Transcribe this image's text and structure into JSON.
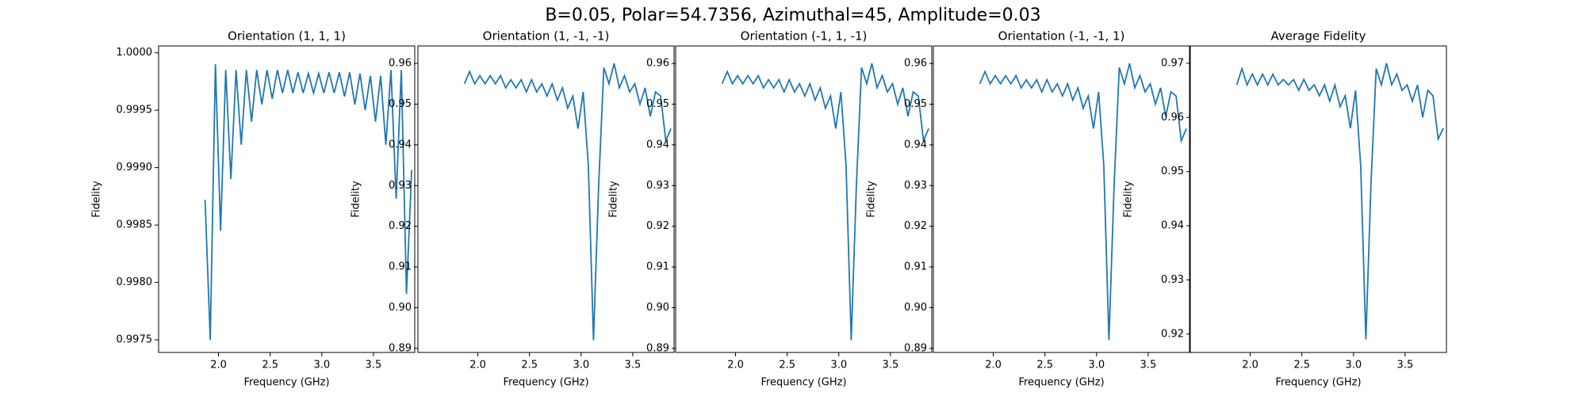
{
  "title": "B=0.05, Polar=54.7356, Azimuthal=45, Amplitude=0.03",
  "chart_data": [
    {
      "type": "line",
      "title": "Orientation (1, 1, 1)",
      "x_label": "Frequency (GHz)",
      "y_label": "Fidelity",
      "color": "#1f77b4",
      "xlim": [
        1.42,
        3.9
      ],
      "ylim": [
        0.99739,
        1.00006
      ],
      "xticks": [
        {
          "value": 2.0,
          "label": "2.0"
        },
        2.5,
        {
          "value": 3.0,
          "label": "3.0"
        },
        3.5
      ],
      "yticks": [
        0.9975,
        {
          "value": 0.998,
          "label": "0.9980"
        },
        0.9985,
        {
          "value": 0.999,
          "label": "0.9990"
        },
        0.9995,
        {
          "value": 1.0,
          "label": "1.0000"
        }
      ],
      "x": [
        1.87,
        1.92,
        1.97,
        2.02,
        2.07,
        2.12,
        2.17,
        2.22,
        2.27,
        2.32,
        2.37,
        2.42,
        2.47,
        2.52,
        2.57,
        2.62,
        2.67,
        2.72,
        2.77,
        2.82,
        2.87,
        2.92,
        2.97,
        3.02,
        3.07,
        3.12,
        3.17,
        3.22,
        3.27,
        3.32,
        3.37,
        3.42,
        3.47,
        3.52,
        3.57,
        3.62,
        3.67,
        3.72,
        3.77,
        3.82,
        3.87
      ],
      "values": [
        0.99872,
        0.9975,
        0.9999,
        0.99845,
        0.99985,
        0.9989,
        0.99985,
        0.9992,
        0.99985,
        0.9994,
        0.99985,
        0.99955,
        0.99985,
        0.9996,
        0.99985,
        0.99965,
        0.99985,
        0.99965,
        0.99983,
        0.99965,
        0.99982,
        0.99965,
        0.99982,
        0.99965,
        0.99983,
        0.99965,
        0.99983,
        0.99962,
        0.99983,
        0.99955,
        0.99982,
        0.9995,
        0.9998,
        0.9994,
        0.9998,
        0.9992,
        0.99985,
        0.99873,
        0.99985,
        0.9979,
        0.99898
      ]
    },
    {
      "type": "line",
      "title": "Orientation (1, -1, -1)",
      "x_label": "Frequency (GHz)",
      "y_label": "Fidelity",
      "color": "#1f77b4",
      "xlim": [
        1.42,
        3.9
      ],
      "ylim": [
        0.889,
        0.9643
      ],
      "xticks": [
        {
          "value": 2.0,
          "label": "2.0"
        },
        2.5,
        {
          "value": 3.0,
          "label": "3.0"
        },
        3.5
      ],
      "yticks": [
        0.89,
        {
          "value": 0.9,
          "label": "0.90"
        },
        0.91,
        0.92,
        0.93,
        0.94,
        0.95,
        0.96
      ],
      "x": [
        1.87,
        1.92,
        1.97,
        2.02,
        2.07,
        2.12,
        2.17,
        2.22,
        2.27,
        2.32,
        2.37,
        2.42,
        2.47,
        2.52,
        2.57,
        2.62,
        2.67,
        2.72,
        2.77,
        2.82,
        2.87,
        2.92,
        2.97,
        3.02,
        3.07,
        3.12,
        3.17,
        3.22,
        3.27,
        3.32,
        3.37,
        3.42,
        3.47,
        3.52,
        3.57,
        3.62,
        3.67,
        3.72,
        3.77,
        3.82,
        3.87
      ],
      "values": [
        0.955,
        0.958,
        0.955,
        0.957,
        0.955,
        0.957,
        0.955,
        0.957,
        0.954,
        0.956,
        0.954,
        0.956,
        0.953,
        0.956,
        0.953,
        0.955,
        0.952,
        0.955,
        0.951,
        0.954,
        0.949,
        0.952,
        0.944,
        0.953,
        0.935,
        0.892,
        0.93,
        0.959,
        0.955,
        0.96,
        0.954,
        0.957,
        0.953,
        0.955,
        0.95,
        0.954,
        0.947,
        0.953,
        0.952,
        0.941,
        0.944
      ]
    },
    {
      "type": "line",
      "title": "Orientation (-1, 1, -1)",
      "x_label": "Frequency (GHz)",
      "y_label": "Fidelity",
      "color": "#1f77b4",
      "xlim": [
        1.42,
        3.9
      ],
      "ylim": [
        0.889,
        0.9643
      ],
      "xticks": [
        {
          "value": 2.0,
          "label": "2.0"
        },
        2.5,
        {
          "value": 3.0,
          "label": "3.0"
        },
        3.5
      ],
      "yticks": [
        0.89,
        {
          "value": 0.9,
          "label": "0.90"
        },
        0.91,
        0.92,
        0.93,
        0.94,
        0.95,
        0.96
      ],
      "x": [
        1.87,
        1.92,
        1.97,
        2.02,
        2.07,
        2.12,
        2.17,
        2.22,
        2.27,
        2.32,
        2.37,
        2.42,
        2.47,
        2.52,
        2.57,
        2.62,
        2.67,
        2.72,
        2.77,
        2.82,
        2.87,
        2.92,
        2.97,
        3.02,
        3.07,
        3.12,
        3.17,
        3.22,
        3.27,
        3.32,
        3.37,
        3.42,
        3.47,
        3.52,
        3.57,
        3.62,
        3.67,
        3.72,
        3.77,
        3.82,
        3.87
      ],
      "values": [
        0.955,
        0.958,
        0.955,
        0.957,
        0.955,
        0.957,
        0.955,
        0.957,
        0.954,
        0.956,
        0.954,
        0.956,
        0.953,
        0.956,
        0.953,
        0.955,
        0.952,
        0.955,
        0.951,
        0.954,
        0.949,
        0.952,
        0.944,
        0.953,
        0.935,
        0.892,
        0.93,
        0.959,
        0.955,
        0.96,
        0.954,
        0.957,
        0.953,
        0.955,
        0.95,
        0.954,
        0.947,
        0.953,
        0.952,
        0.941,
        0.944
      ]
    },
    {
      "type": "line",
      "title": "Orientation (-1, -1, 1)",
      "x_label": "Frequency (GHz)",
      "y_label": "Fidelity",
      "color": "#1f77b4",
      "xlim": [
        1.42,
        3.9
      ],
      "ylim": [
        0.889,
        0.9643
      ],
      "xticks": [
        {
          "value": 2.0,
          "label": "2.0"
        },
        2.5,
        {
          "value": 3.0,
          "label": "3.0"
        },
        3.5
      ],
      "yticks": [
        0.89,
        {
          "value": 0.9,
          "label": "0.90"
        },
        0.91,
        0.92,
        0.93,
        0.94,
        0.95,
        0.96
      ],
      "x": [
        1.87,
        1.92,
        1.97,
        2.02,
        2.07,
        2.12,
        2.17,
        2.22,
        2.27,
        2.32,
        2.37,
        2.42,
        2.47,
        2.52,
        2.57,
        2.62,
        2.67,
        2.72,
        2.77,
        2.82,
        2.87,
        2.92,
        2.97,
        3.02,
        3.07,
        3.12,
        3.17,
        3.22,
        3.27,
        3.32,
        3.37,
        3.42,
        3.47,
        3.52,
        3.57,
        3.62,
        3.67,
        3.72,
        3.77,
        3.82,
        3.87
      ],
      "values": [
        0.955,
        0.958,
        0.955,
        0.957,
        0.955,
        0.957,
        0.955,
        0.957,
        0.954,
        0.956,
        0.954,
        0.956,
        0.953,
        0.956,
        0.953,
        0.955,
        0.952,
        0.955,
        0.951,
        0.954,
        0.949,
        0.952,
        0.944,
        0.953,
        0.935,
        0.892,
        0.93,
        0.959,
        0.955,
        0.96,
        0.954,
        0.957,
        0.953,
        0.955,
        0.95,
        0.954,
        0.947,
        0.953,
        0.952,
        0.941,
        0.944
      ]
    },
    {
      "type": "line",
      "title": "Average Fidelity",
      "x_label": "Frequency (GHz)",
      "y_label": "Fidelity",
      "color": "#1f77b4",
      "xlim": [
        1.42,
        3.9
      ],
      "ylim": [
        0.9166,
        0.9732
      ],
      "xticks": [
        {
          "value": 2.0,
          "label": "2.0"
        },
        2.5,
        {
          "value": 3.0,
          "label": "3.0"
        },
        3.5
      ],
      "yticks": [
        0.92,
        0.93,
        0.94,
        0.95,
        0.96,
        0.97
      ],
      "x": [
        1.87,
        1.92,
        1.97,
        2.02,
        2.07,
        2.12,
        2.17,
        2.22,
        2.27,
        2.32,
        2.37,
        2.42,
        2.47,
        2.52,
        2.57,
        2.62,
        2.67,
        2.72,
        2.77,
        2.82,
        2.87,
        2.92,
        2.97,
        3.02,
        3.07,
        3.12,
        3.17,
        3.22,
        3.27,
        3.32,
        3.37,
        3.42,
        3.47,
        3.52,
        3.57,
        3.62,
        3.67,
        3.72,
        3.77,
        3.82,
        3.87
      ],
      "values": [
        0.966,
        0.969,
        0.966,
        0.968,
        0.966,
        0.968,
        0.966,
        0.968,
        0.966,
        0.967,
        0.966,
        0.967,
        0.965,
        0.967,
        0.965,
        0.966,
        0.964,
        0.966,
        0.963,
        0.966,
        0.962,
        0.964,
        0.958,
        0.965,
        0.951,
        0.919,
        0.948,
        0.969,
        0.966,
        0.97,
        0.966,
        0.968,
        0.965,
        0.966,
        0.963,
        0.966,
        0.96,
        0.965,
        0.964,
        0.956,
        0.958
      ]
    }
  ]
}
